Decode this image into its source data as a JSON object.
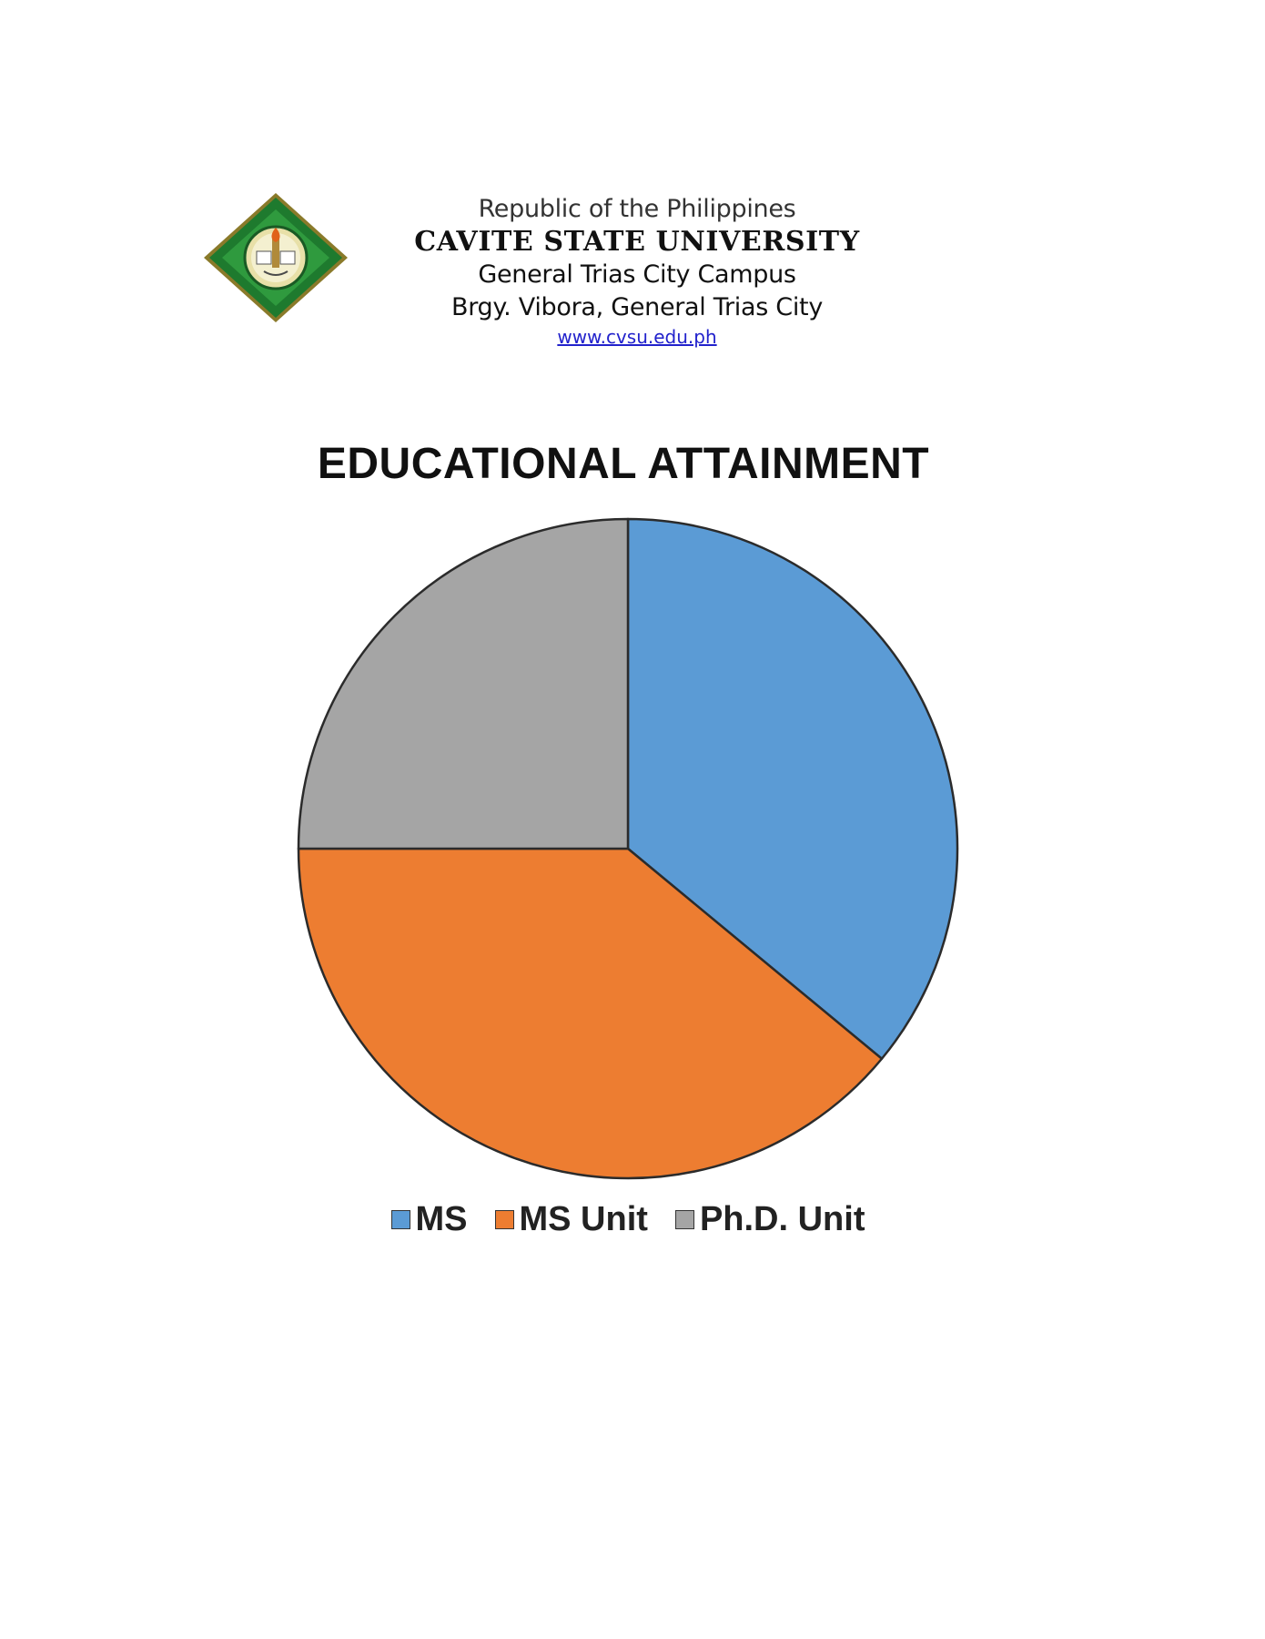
{
  "letterhead": {
    "logo_icon": "university-seal-icon",
    "republic": "Republic of the Philippines",
    "university": "CAVITE STATE UNIVERSITY",
    "campus": "General Trias City Campus",
    "address": "Brgy. Vibora, General Trias City",
    "website": "www.cvsu.edu.ph"
  },
  "chart_data": {
    "type": "pie",
    "title": "EDUCATIONAL ATTAINMENT",
    "categories": [
      "MS",
      "MS Unit",
      "Ph.D. Unit"
    ],
    "values": [
      36,
      39,
      25
    ],
    "colors": [
      "#5b9bd5",
      "#ed7d31",
      "#a5a5a5"
    ],
    "legend_position": "bottom",
    "start_angle_deg": 0,
    "direction": "clockwise"
  }
}
